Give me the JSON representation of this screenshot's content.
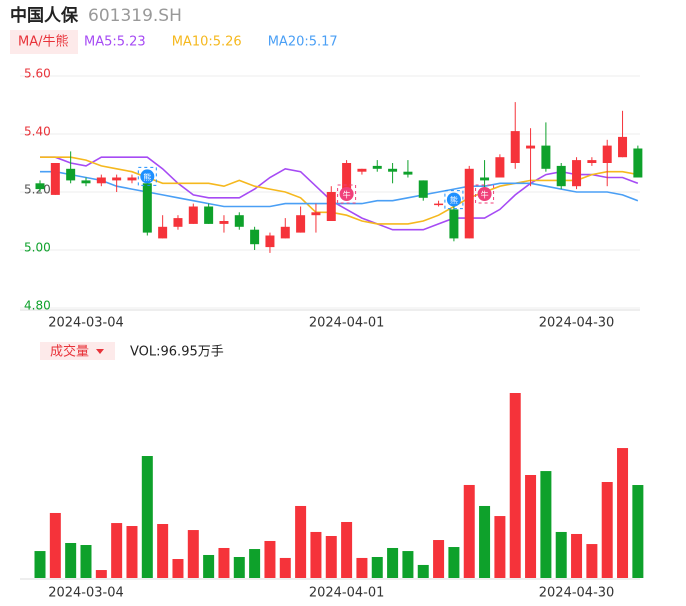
{
  "header": {
    "name": "中国人保",
    "code": "601319.SH"
  },
  "chart_data": {
    "type": "candlestick",
    "tab": "MA/牛熊",
    "legend": [
      {
        "text": "MA5:5.23",
        "color": "#a64bf4"
      },
      {
        "text": "MA10:5.26",
        "color": "#f5b81e"
      },
      {
        "text": "MA20:5.17",
        "color": "#4a9ff5"
      }
    ],
    "categories": [
      null,
      null,
      null,
      "2024-03-04",
      null,
      null,
      null,
      null,
      null,
      null,
      null,
      null,
      null,
      null,
      null,
      null,
      null,
      null,
      null,
      null,
      "2024-04-01",
      null,
      null,
      null,
      null,
      null,
      null,
      null,
      null,
      null,
      null,
      null,
      null,
      null,
      null,
      "2024-04-30",
      null,
      null,
      null,
      null
    ],
    "open": [
      5.23,
      5.19,
      5.28,
      5.24,
      5.23,
      5.24,
      5.24,
      5.23,
      5.04,
      5.08,
      5.09,
      5.15,
      5.09,
      5.12,
      5.07,
      5.01,
      5.04,
      5.06,
      5.12,
      5.1,
      5.21,
      5.27,
      5.29,
      5.28,
      5.27,
      5.24,
      5.16,
      5.14,
      5.04,
      5.25,
      5.25,
      5.3,
      5.35,
      5.36,
      5.29,
      5.22,
      5.3,
      5.3,
      5.32,
      5.35
    ],
    "high": [
      5.24,
      5.3,
      5.34,
      5.25,
      5.26,
      5.26,
      5.26,
      5.24,
      5.12,
      5.12,
      5.16,
      5.16,
      5.12,
      5.13,
      5.08,
      5.06,
      5.11,
      5.15,
      5.16,
      5.22,
      5.31,
      5.28,
      5.31,
      5.3,
      5.31,
      5.24,
      5.17,
      5.16,
      5.29,
      5.31,
      5.33,
      5.51,
      5.42,
      5.44,
      5.3,
      5.32,
      5.32,
      5.38,
      5.48,
      5.36
    ],
    "low": [
      5.2,
      5.19,
      5.23,
      5.22,
      5.22,
      5.2,
      5.23,
      5.05,
      5.04,
      5.07,
      5.09,
      5.09,
      5.06,
      5.07,
      5.0,
      4.99,
      5.04,
      5.06,
      5.06,
      5.1,
      5.2,
      5.26,
      5.27,
      5.23,
      5.25,
      5.17,
      5.15,
      5.03,
      5.04,
      5.2,
      5.25,
      5.28,
      5.22,
      5.27,
      5.21,
      5.21,
      5.29,
      5.22,
      5.32,
      5.25
    ],
    "close": [
      5.21,
      5.3,
      5.24,
      5.23,
      5.25,
      5.25,
      5.25,
      5.06,
      5.08,
      5.11,
      5.15,
      5.09,
      5.1,
      5.08,
      5.02,
      5.05,
      5.08,
      5.12,
      5.13,
      5.2,
      5.3,
      5.28,
      5.28,
      5.27,
      5.26,
      5.18,
      5.16,
      5.04,
      5.28,
      5.24,
      5.32,
      5.41,
      5.36,
      5.28,
      5.22,
      5.31,
      5.31,
      5.36,
      5.39,
      5.25
    ],
    "ma": [
      {
        "color": "#a64bf4",
        "values": [
          5.32,
          5.32,
          5.3,
          5.29,
          5.32,
          5.32,
          5.32,
          5.32,
          5.28,
          5.23,
          5.19,
          5.18,
          5.18,
          5.18,
          5.21,
          5.25,
          5.28,
          5.27,
          5.22,
          5.17,
          5.14,
          5.11,
          5.09,
          5.07,
          5.07,
          5.07,
          5.09,
          5.11,
          5.11,
          5.11,
          5.14,
          5.19,
          5.23,
          5.26,
          5.27,
          5.26,
          5.26,
          5.25,
          5.25,
          5.23
        ]
      },
      {
        "color": "#f5b81e",
        "values": [
          5.32,
          5.32,
          5.32,
          5.31,
          5.29,
          5.28,
          5.27,
          5.25,
          5.23,
          5.23,
          5.23,
          5.23,
          5.22,
          5.24,
          5.22,
          5.21,
          5.2,
          5.18,
          5.13,
          5.13,
          5.12,
          5.1,
          5.09,
          5.09,
          5.09,
          5.1,
          5.12,
          5.15,
          5.18,
          5.2,
          5.22,
          5.23,
          5.24,
          5.24,
          5.24,
          5.24,
          5.26,
          5.27,
          5.27,
          5.26
        ]
      },
      {
        "color": "#4a9ff5",
        "values": [
          5.27,
          5.27,
          5.26,
          5.25,
          5.24,
          5.22,
          5.21,
          5.2,
          5.19,
          5.18,
          5.17,
          5.16,
          5.15,
          5.15,
          5.15,
          5.15,
          5.16,
          5.16,
          5.16,
          5.16,
          5.16,
          5.16,
          5.17,
          5.17,
          5.18,
          5.19,
          5.2,
          5.21,
          5.22,
          5.22,
          5.23,
          5.23,
          5.23,
          5.22,
          5.21,
          5.2,
          5.2,
          5.2,
          5.19,
          5.17
        ]
      }
    ],
    "signals": [
      null,
      null,
      null,
      null,
      null,
      null,
      null,
      "熊",
      null,
      null,
      null,
      null,
      null,
      null,
      null,
      null,
      null,
      null,
      null,
      null,
      "牛",
      null,
      null,
      null,
      null,
      null,
      null,
      "熊",
      null,
      "牛",
      null,
      null,
      null,
      null,
      null,
      null,
      null,
      null,
      null,
      null
    ],
    "up_color": "#f5333a",
    "down_color": "#0ea12b",
    "ylim": [
      4.8,
      5.6
    ],
    "yticks": [
      {
        "value": 5.6,
        "label": "5.60"
      },
      {
        "value": 5.4,
        "label": "5.40"
      },
      {
        "value": 5.2,
        "label": "5.20"
      },
      {
        "value": 5.0,
        "label": "5.00"
      },
      {
        "value": 4.8,
        "label": "4.80"
      }
    ],
    "ytick_colors": [
      "#e8333a",
      "#e8333a",
      "#555555",
      "#0ea12b",
      "#0ea12b"
    ],
    "grid": true,
    "volume_tab": "成交量",
    "volume_label": "VOL:96.95万手",
    "volume": [
      28.1,
      67.8,
      36.5,
      34.4,
      8.3,
      57.3,
      54.2,
      127.2,
      56.3,
      19.8,
      50.0,
      24.0,
      31.3,
      21.9,
      30.2,
      38.6,
      20.9,
      75.1,
      48.0,
      43.8,
      58.4,
      20.9,
      21.9,
      31.3,
      28.1,
      13.6,
      39.6,
      32.3,
      97.0,
      75.1,
      64.6,
      192.9,
      107.4,
      111.5,
      48.0,
      45.9,
      35.4,
      100.1,
      135.5,
      96.95
    ]
  }
}
